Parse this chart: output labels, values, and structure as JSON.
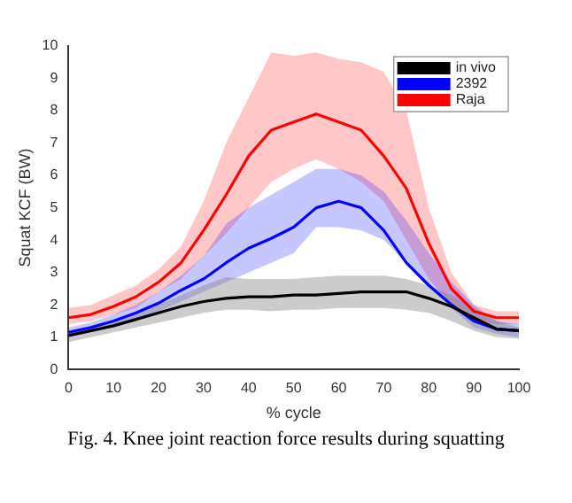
{
  "chart_data": {
    "type": "line",
    "xlabel": "% cycle",
    "ylabel": "Squat KCF (BW)",
    "x": [
      0,
      5,
      10,
      15,
      20,
      25,
      30,
      35,
      40,
      45,
      50,
      55,
      60,
      65,
      70,
      75,
      80,
      85,
      90,
      95,
      100
    ],
    "series": [
      {
        "name": "in vivo",
        "color": "#000000",
        "values": [
          1.05,
          1.2,
          1.35,
          1.55,
          1.75,
          1.95,
          2.1,
          2.2,
          2.25,
          2.25,
          2.3,
          2.3,
          2.35,
          2.4,
          2.4,
          2.4,
          2.2,
          1.95,
          1.6,
          1.25,
          1.2
        ],
        "lower": [
          0.85,
          1.0,
          1.15,
          1.3,
          1.45,
          1.6,
          1.75,
          1.85,
          1.85,
          1.8,
          1.85,
          1.85,
          1.9,
          1.9,
          1.9,
          1.85,
          1.75,
          1.5,
          1.2,
          1.0,
          0.95
        ],
        "upper": [
          1.2,
          1.35,
          1.5,
          1.75,
          2.0,
          2.3,
          2.6,
          2.85,
          2.8,
          2.8,
          2.8,
          2.85,
          2.9,
          2.9,
          2.9,
          2.8,
          2.6,
          2.3,
          1.9,
          1.5,
          1.3
        ]
      },
      {
        "name": "2392",
        "color": "#0000ff",
        "values": [
          1.15,
          1.3,
          1.5,
          1.75,
          2.05,
          2.45,
          2.8,
          3.3,
          3.75,
          4.05,
          4.4,
          5.0,
          5.2,
          5.0,
          4.3,
          3.3,
          2.6,
          2.0,
          1.5,
          1.25,
          1.2
        ],
        "lower": [
          1.0,
          1.15,
          1.3,
          1.5,
          1.8,
          2.1,
          2.4,
          2.7,
          3.0,
          3.3,
          3.6,
          4.4,
          4.4,
          4.3,
          4.0,
          3.3,
          2.6,
          1.9,
          1.3,
          1.1,
          1.0
        ],
        "upper": [
          1.3,
          1.45,
          1.7,
          2.0,
          2.4,
          2.9,
          3.5,
          4.5,
          5.0,
          5.4,
          5.8,
          6.2,
          6.2,
          6.0,
          5.5,
          4.6,
          3.6,
          2.7,
          2.0,
          1.5,
          1.4
        ]
      },
      {
        "name": "Raja",
        "color": "#ff0000",
        "values": [
          1.6,
          1.7,
          1.95,
          2.25,
          2.7,
          3.3,
          4.3,
          5.4,
          6.6,
          7.4,
          7.65,
          7.9,
          7.65,
          7.4,
          6.6,
          5.6,
          3.9,
          2.5,
          1.8,
          1.6,
          1.6
        ],
        "lower": [
          1.4,
          1.5,
          1.7,
          1.9,
          2.4,
          2.8,
          3.5,
          4.2,
          5.0,
          5.8,
          6.2,
          6.5,
          6.2,
          5.8,
          5.2,
          4.0,
          2.8,
          2.0,
          1.5,
          1.4,
          1.4
        ],
        "upper": [
          1.9,
          2.0,
          2.3,
          2.6,
          3.1,
          3.8,
          5.2,
          7.0,
          8.4,
          9.8,
          9.7,
          9.8,
          9.6,
          9.5,
          9.2,
          8.0,
          5.0,
          3.0,
          2.0,
          1.8,
          1.8
        ]
      }
    ],
    "xlim": [
      0,
      100
    ],
    "xticks": [
      0,
      10,
      20,
      30,
      40,
      50,
      60,
      70,
      80,
      90,
      100
    ],
    "ylim": [
      0,
      10
    ],
    "yticks": [
      0,
      1,
      2,
      3,
      4,
      5,
      6,
      7,
      8,
      9,
      10
    ],
    "grid": false,
    "legend": "top right",
    "marker": "none",
    "line_style": "solid",
    "annotations": [
      "Fig. 4. Knee joint reaction force results during squatting"
    ]
  }
}
